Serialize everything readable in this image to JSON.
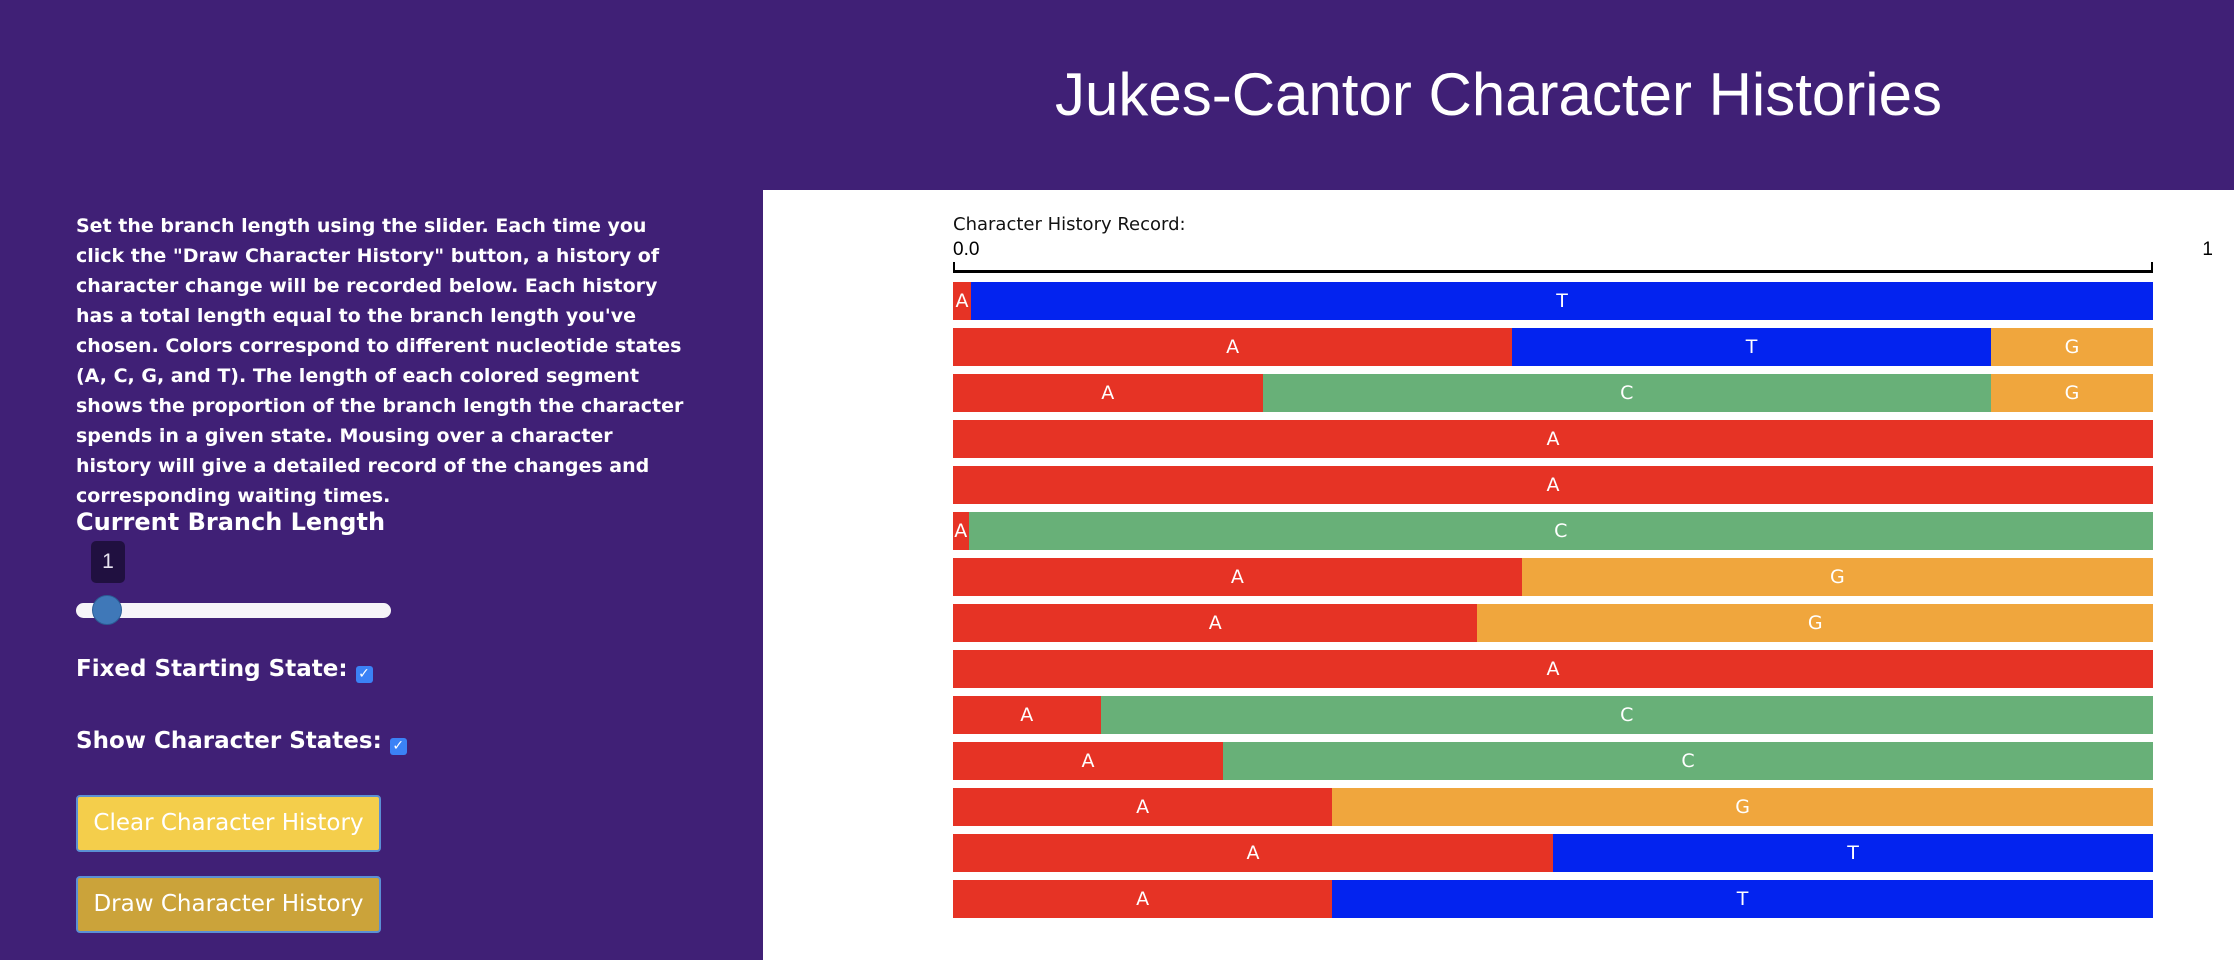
{
  "title": "Jukes-Cantor Character Histories",
  "sidebar": {
    "instructions": "Set the branch length using the slider. Each time you click the \"Draw Character History\" button, a history of character change will be recorded below. Each history has a total length equal to the branch length you've chosen. Colors correspond to different nucleotide states (A, C, G, and T). The length of each colored segment shows the proportion of the branch length the character spends in a given state. Mousing over a character history will give a detailed record of the changes and corresponding waiting times.",
    "branch_length_label": "Current Branch Length",
    "branch_length_value": "1",
    "fixed_start_label": "Fixed Starting State:",
    "fixed_start_checked": true,
    "show_states_label": "Show Character States:",
    "show_states_checked": true,
    "clear_button": "Clear Character History",
    "draw_button": "Draw Character History"
  },
  "panel": {
    "record_label": "Character History Record:",
    "scale_min": "0.0",
    "scale_max": "1"
  },
  "colors": {
    "A": "#e63325",
    "C": "#68b078",
    "G": "#f0a63d",
    "T": "#0323ef"
  },
  "histories": [
    [
      {
        "state": "A",
        "fraction": 0.015
      },
      {
        "state": "T",
        "fraction": 0.985
      }
    ],
    [
      {
        "state": "A",
        "fraction": 0.466
      },
      {
        "state": "T",
        "fraction": 0.399
      },
      {
        "state": "G",
        "fraction": 0.135
      }
    ],
    [
      {
        "state": "A",
        "fraction": 0.258
      },
      {
        "state": "C",
        "fraction": 0.607
      },
      {
        "state": "G",
        "fraction": 0.135
      }
    ],
    [
      {
        "state": "A",
        "fraction": 1.0
      }
    ],
    [
      {
        "state": "A",
        "fraction": 1.0
      }
    ],
    [
      {
        "state": "A",
        "fraction": 0.013
      },
      {
        "state": "C",
        "fraction": 0.987
      }
    ],
    [
      {
        "state": "A",
        "fraction": 0.474
      },
      {
        "state": "G",
        "fraction": 0.526
      }
    ],
    [
      {
        "state": "A",
        "fraction": 0.437
      },
      {
        "state": "G",
        "fraction": 0.563
      }
    ],
    [
      {
        "state": "A",
        "fraction": 1.0
      }
    ],
    [
      {
        "state": "A",
        "fraction": 0.123
      },
      {
        "state": "C",
        "fraction": 0.877
      }
    ],
    [
      {
        "state": "A",
        "fraction": 0.225
      },
      {
        "state": "C",
        "fraction": 0.775
      }
    ],
    [
      {
        "state": "A",
        "fraction": 0.316
      },
      {
        "state": "G",
        "fraction": 0.684
      }
    ],
    [
      {
        "state": "A",
        "fraction": 0.5
      },
      {
        "state": "T",
        "fraction": 0.5
      }
    ],
    [
      {
        "state": "A",
        "fraction": 0.316
      },
      {
        "state": "T",
        "fraction": 0.684
      }
    ]
  ]
}
